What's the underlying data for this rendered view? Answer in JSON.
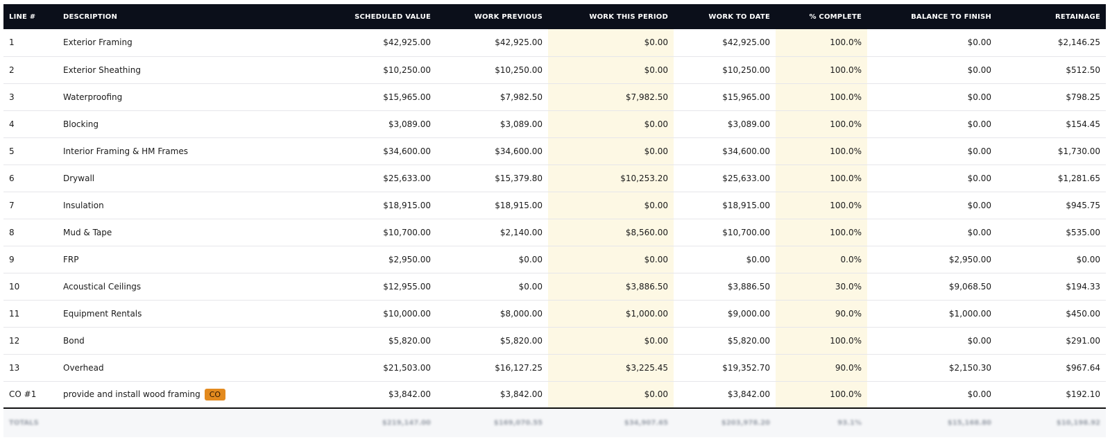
{
  "columns": {
    "line": "LINE #",
    "description": "DESCRIPTION",
    "scheduled": "SCHEDULED VALUE",
    "previous": "WORK PREVIOUS",
    "this_period": "WORK THIS PERIOD",
    "to_date": "WORK TO DATE",
    "pct": "% COMPLETE",
    "balance": "BALANCE TO FINISH",
    "retainage": "RETAINAGE"
  },
  "rows": [
    {
      "line": "1",
      "description": "Exterior Framing",
      "scheduled": "$42,925.00",
      "previous": "$42,925.00",
      "this_period": "$0.00",
      "to_date": "$42,925.00",
      "pct": "100.0%",
      "balance": "$0.00",
      "retainage": "$2,146.25"
    },
    {
      "line": "2",
      "description": "Exterior Sheathing",
      "scheduled": "$10,250.00",
      "previous": "$10,250.00",
      "this_period": "$0.00",
      "to_date": "$10,250.00",
      "pct": "100.0%",
      "balance": "$0.00",
      "retainage": "$512.50"
    },
    {
      "line": "3",
      "description": "Waterproofing",
      "scheduled": "$15,965.00",
      "previous": "$7,982.50",
      "this_period": "$7,982.50",
      "to_date": "$15,965.00",
      "pct": "100.0%",
      "balance": "$0.00",
      "retainage": "$798.25"
    },
    {
      "line": "4",
      "description": "Blocking",
      "scheduled": "$3,089.00",
      "previous": "$3,089.00",
      "this_period": "$0.00",
      "to_date": "$3,089.00",
      "pct": "100.0%",
      "balance": "$0.00",
      "retainage": "$154.45"
    },
    {
      "line": "5",
      "description": "Interior Framing & HM Frames",
      "scheduled": "$34,600.00",
      "previous": "$34,600.00",
      "this_period": "$0.00",
      "to_date": "$34,600.00",
      "pct": "100.0%",
      "balance": "$0.00",
      "retainage": "$1,730.00"
    },
    {
      "line": "6",
      "description": "Drywall",
      "scheduled": "$25,633.00",
      "previous": "$15,379.80",
      "this_period": "$10,253.20",
      "to_date": "$25,633.00",
      "pct": "100.0%",
      "balance": "$0.00",
      "retainage": "$1,281.65"
    },
    {
      "line": "7",
      "description": "Insulation",
      "scheduled": "$18,915.00",
      "previous": "$18,915.00",
      "this_period": "$0.00",
      "to_date": "$18,915.00",
      "pct": "100.0%",
      "balance": "$0.00",
      "retainage": "$945.75"
    },
    {
      "line": "8",
      "description": "Mud & Tape",
      "scheduled": "$10,700.00",
      "previous": "$2,140.00",
      "this_period": "$8,560.00",
      "to_date": "$10,700.00",
      "pct": "100.0%",
      "balance": "$0.00",
      "retainage": "$535.00"
    },
    {
      "line": "9",
      "description": "FRP",
      "scheduled": "$2,950.00",
      "previous": "$0.00",
      "this_period": "$0.00",
      "to_date": "$0.00",
      "pct": "0.0%",
      "balance": "$2,950.00",
      "retainage": "$0.00"
    },
    {
      "line": "10",
      "description": "Acoustical Ceilings",
      "scheduled": "$12,955.00",
      "previous": "$0.00",
      "this_period": "$3,886.50",
      "to_date": "$3,886.50",
      "pct": "30.0%",
      "balance": "$9,068.50",
      "retainage": "$194.33"
    },
    {
      "line": "11",
      "description": "Equipment Rentals",
      "scheduled": "$10,000.00",
      "previous": "$8,000.00",
      "this_period": "$1,000.00",
      "to_date": "$9,000.00",
      "pct": "90.0%",
      "balance": "$1,000.00",
      "retainage": "$450.00"
    },
    {
      "line": "12",
      "description": "Bond",
      "scheduled": "$5,820.00",
      "previous": "$5,820.00",
      "this_period": "$0.00",
      "to_date": "$5,820.00",
      "pct": "100.0%",
      "balance": "$0.00",
      "retainage": "$291.00"
    },
    {
      "line": "13",
      "description": "Overhead",
      "scheduled": "$21,503.00",
      "previous": "$16,127.25",
      "this_period": "$3,225.45",
      "to_date": "$19,352.70",
      "pct": "90.0%",
      "balance": "$2,150.30",
      "retainage": "$967.64"
    },
    {
      "line": "CO #1",
      "description": "provide and install wood framing",
      "badge": "CO",
      "scheduled": "$3,842.00",
      "previous": "$3,842.00",
      "this_period": "$0.00",
      "to_date": "$3,842.00",
      "pct": "100.0%",
      "balance": "$0.00",
      "retainage": "$192.10"
    }
  ],
  "totals": {
    "label": "TOTALS",
    "scheduled": "$219,147.00",
    "previous": "$169,070.55",
    "this_period": "$34,907.65",
    "to_date": "$203,978.20",
    "pct": "93.1%",
    "balance": "$15,168.80",
    "retainage": "$10,198.92"
  },
  "colors": {
    "header_bg": "#0b0f1a",
    "highlight_bg": "#fdf8e4",
    "badge_bg": "#e38a1e"
  }
}
